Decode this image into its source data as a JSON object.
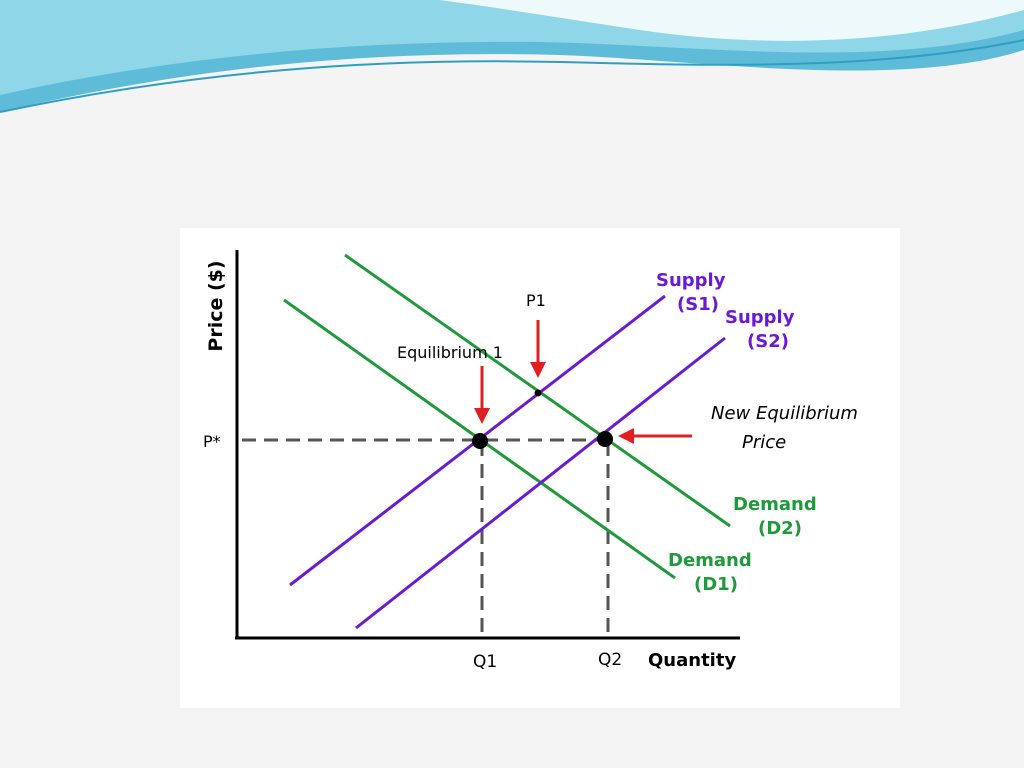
{
  "slide": {
    "background": "#f4f4f4",
    "header_wave_colors": [
      "#5fbcd8",
      "#8fd6e8",
      "#2e9fc4"
    ]
  },
  "diagram": {
    "axis_labels": {
      "y": "Price ($)",
      "x": "Quantity"
    },
    "price_label": "P*",
    "quantity_labels": {
      "q1": "Q1",
      "q2": "Q2"
    },
    "curves": {
      "s1": {
        "line1": "Supply",
        "line2": "(S1)"
      },
      "s2": {
        "line1": "Supply",
        "line2": "(S2)"
      },
      "d1": {
        "line1": "Demand",
        "line2": "(D1)"
      },
      "d2": {
        "line1": "Demand",
        "line2": "(D2)"
      }
    },
    "annotations": {
      "p1": "P1",
      "equilibrium_1": "Equilibrium 1",
      "new_equilibrium_line1": "New Equilibrium",
      "new_equilibrium_line2": "Price"
    },
    "colors": {
      "supply": "#6a1bd1",
      "demand": "#1f9a3a",
      "arrow": "#e02020",
      "axis": "#000000",
      "dashed": "#555555"
    }
  }
}
